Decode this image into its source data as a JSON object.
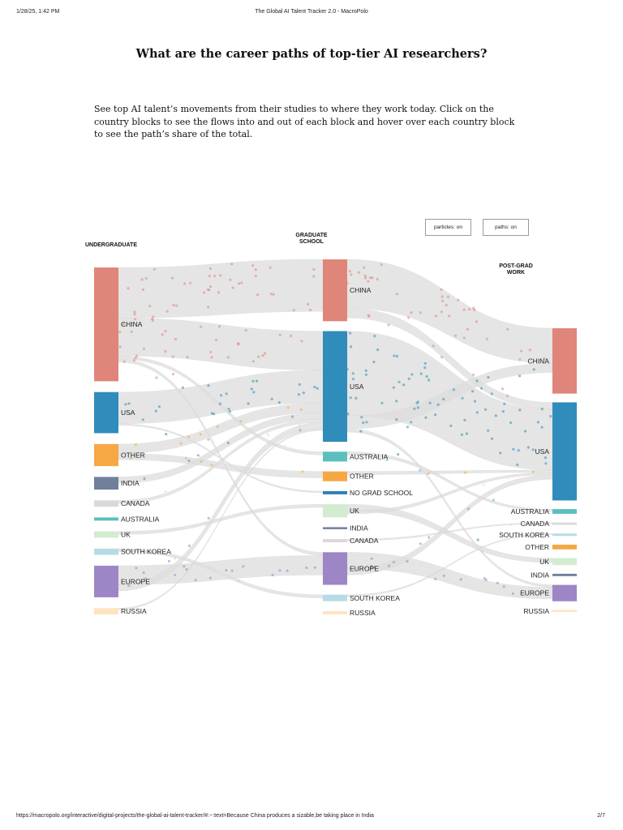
{
  "browser": {
    "timestamp": "1/28/25, 1:42 PM",
    "page_title": "The Global AI Talent Tracker 2.0 - MacroPolo",
    "url": "https://macropolo.org/interactive/digital-projects/the-global-ai-talent-tracker/#:~:text=Because China produces a sizable,be taking place in India",
    "page_number": "2/7"
  },
  "article": {
    "title": "What are the career paths of top-tier AI researchers?",
    "intro": "See top AI talent’s movements from their studies to where they work today. Click on the country blocks to see the flows into and out of each block and hover over each country block to see the path’s share of the total."
  },
  "controls": {
    "particles_label": "particles: on",
    "paths_label": "paths: on"
  },
  "colors": {
    "China": "#e0857a",
    "USA": "#2f8cbb",
    "Other": "#f5a844",
    "India": "#6f7f9c",
    "Canada": "#d9d9d9",
    "Australia": "#5bbfbd",
    "UK": "#d3ecd0",
    "South Korea": "#b7dbe6",
    "Europe": "#9c86c6",
    "Russia": "#fde4c0",
    "No Grad School": "#2f7fb7",
    "flow": "#dcdcdc"
  },
  "diagram": {
    "columns": [
      {
        "key": "undergrad",
        "heading": [
          "UNDERGRADUATE"
        ],
        "nodes": [
          {
            "id": "Ugrad-China",
            "country": "China",
            "label": "CHINA",
            "share": 0.36
          },
          {
            "id": "Ugrad-USA",
            "country": "USA",
            "label": "USA",
            "share": 0.13
          },
          {
            "id": "Ugrad-Other",
            "country": "Other",
            "label": "OTHER",
            "share": 0.07
          },
          {
            "id": "Ugrad-India",
            "country": "India",
            "label": "INDIA",
            "share": 0.04
          },
          {
            "id": "Ugrad-Canada",
            "country": "Canada",
            "label": "CANADA",
            "share": 0.02
          },
          {
            "id": "Ugrad-Australia",
            "country": "Australia",
            "label": "AUSTRALIA",
            "share": 0.01
          },
          {
            "id": "Ugrad-UK",
            "country": "UK",
            "label": "UK",
            "share": 0.02
          },
          {
            "id": "Ugrad-SouthKorea",
            "country": "South Korea",
            "label": "SOUTH KOREA",
            "share": 0.02
          },
          {
            "id": "Ugrad-Europe",
            "country": "Europe",
            "label": "EUROPE",
            "share": 0.1
          },
          {
            "id": "Ugrad-Russia",
            "country": "Russia",
            "label": "RUSSIA",
            "share": 0.02
          }
        ]
      },
      {
        "key": "grad",
        "heading": [
          "GRADUATE",
          "SCHOOL"
        ],
        "nodes": [
          {
            "id": "Grad-China",
            "country": "China",
            "label": "CHINA",
            "share": 0.19
          },
          {
            "id": "Grad-USA",
            "country": "USA",
            "label": "USA",
            "share": 0.34
          },
          {
            "id": "Grad-Australia",
            "country": "Australia",
            "label": "AUSTRALIA",
            "share": 0.03
          },
          {
            "id": "Grad-Other",
            "country": "Other",
            "label": "OTHER",
            "share": 0.03
          },
          {
            "id": "Grad-NoGrad",
            "country": "No Grad School",
            "label": "NO GRAD SCHOOL",
            "share": 0.01
          },
          {
            "id": "Grad-UK",
            "country": "UK",
            "label": "UK",
            "share": 0.04
          },
          {
            "id": "Grad-India",
            "country": "India",
            "label": "INDIA",
            "share": 0.005
          },
          {
            "id": "Grad-Canada",
            "country": "Canada",
            "label": "CANADA",
            "share": 0.01
          },
          {
            "id": "Grad-Europe",
            "country": "Europe",
            "label": "EUROPE",
            "share": 0.1
          },
          {
            "id": "Grad-SouthKorea",
            "country": "South Korea",
            "label": "SOUTH KOREA",
            "share": 0.02
          },
          {
            "id": "Grad-Russia",
            "country": "Russia",
            "label": "RUSSIA",
            "share": 0.01
          }
        ]
      },
      {
        "key": "work",
        "heading": [
          "POST-GRAD",
          "WORK"
        ],
        "nodes": [
          {
            "id": "Work-China",
            "country": "China",
            "label": "CHINA",
            "share": 0.28
          },
          {
            "id": "Work-USA",
            "country": "USA",
            "label": "USA",
            "share": 0.42
          },
          {
            "id": "Work-Australia",
            "country": "Australia",
            "label": "AUSTRALIA",
            "share": 0.02
          },
          {
            "id": "Work-Canada",
            "country": "Canada",
            "label": "CANADA",
            "share": 0.01
          },
          {
            "id": "Work-SouthKorea",
            "country": "South Korea",
            "label": "SOUTH KOREA",
            "share": 0.01
          },
          {
            "id": "Work-Other",
            "country": "Other",
            "label": "OTHER",
            "share": 0.02
          },
          {
            "id": "Work-UK",
            "country": "UK",
            "label": "UK",
            "share": 0.03
          },
          {
            "id": "Work-India",
            "country": "India",
            "label": "INDIA",
            "share": 0.01
          },
          {
            "id": "Work-Europe",
            "country": "Europe",
            "label": "EUROPE",
            "share": 0.07
          },
          {
            "id": "Work-Russia",
            "country": "Russia",
            "label": "RUSSIA",
            "share": 0.005
          }
        ]
      }
    ],
    "flows": [
      {
        "from": "Ugrad-China",
        "to": "Grad-China",
        "share": 0.16,
        "country": "China"
      },
      {
        "from": "Ugrad-China",
        "to": "Grad-USA",
        "share": 0.12,
        "country": "China"
      },
      {
        "from": "Ugrad-China",
        "to": "Grad-Australia",
        "share": 0.01,
        "country": "China"
      },
      {
        "from": "Ugrad-China",
        "to": "Grad-Europe",
        "share": 0.01,
        "country": "China"
      },
      {
        "from": "Ugrad-USA",
        "to": "Grad-USA",
        "share": 0.1,
        "country": "USA"
      },
      {
        "from": "Ugrad-USA",
        "to": "Grad-NoGrad",
        "share": 0.005,
        "country": "USA"
      },
      {
        "from": "Ugrad-Other",
        "to": "Grad-USA",
        "share": 0.03,
        "country": "Other"
      },
      {
        "from": "Ugrad-Other",
        "to": "Grad-Other",
        "share": 0.02,
        "country": "Other"
      },
      {
        "from": "Ugrad-India",
        "to": "Grad-USA",
        "share": 0.02,
        "country": "India"
      },
      {
        "from": "Ugrad-Canada",
        "to": "Grad-USA",
        "share": 0.01,
        "country": "Canada"
      },
      {
        "from": "Ugrad-UK",
        "to": "Grad-UK",
        "share": 0.01,
        "country": "UK"
      },
      {
        "from": "Ugrad-SouthKorea",
        "to": "Grad-SouthKorea",
        "share": 0.01,
        "country": "South Korea"
      },
      {
        "from": "Ugrad-Europe",
        "to": "Grad-Europe",
        "share": 0.06,
        "country": "Europe"
      },
      {
        "from": "Ugrad-Europe",
        "to": "Grad-USA",
        "share": 0.02,
        "country": "Europe"
      },
      {
        "from": "Ugrad-Russia",
        "to": "Grad-USA",
        "share": 0.005,
        "country": "Russia"
      },
      {
        "from": "Grad-China",
        "to": "Work-China",
        "share": 0.15,
        "country": "China"
      },
      {
        "from": "Grad-China",
        "to": "Work-USA",
        "share": 0.03,
        "country": "China"
      },
      {
        "from": "Grad-USA",
        "to": "Work-USA",
        "share": 0.26,
        "country": "USA"
      },
      {
        "from": "Grad-USA",
        "to": "Work-China",
        "share": 0.04,
        "country": "USA"
      },
      {
        "from": "Grad-USA",
        "to": "Work-Europe",
        "share": 0.01,
        "country": "USA"
      },
      {
        "from": "Grad-Australia",
        "to": "Work-Australia",
        "share": 0.01,
        "country": "Australia"
      },
      {
        "from": "Grad-Other",
        "to": "Work-USA",
        "share": 0.01,
        "country": "Other"
      },
      {
        "from": "Grad-UK",
        "to": "Work-UK",
        "share": 0.02,
        "country": "UK"
      },
      {
        "from": "Grad-UK",
        "to": "Work-USA",
        "share": 0.01,
        "country": "UK"
      },
      {
        "from": "Grad-Canada",
        "to": "Work-Canada",
        "share": 0.005,
        "country": "Canada"
      },
      {
        "from": "Grad-Europe",
        "to": "Work-Europe",
        "share": 0.05,
        "country": "Europe"
      },
      {
        "from": "Grad-Europe",
        "to": "Work-USA",
        "share": 0.02,
        "country": "Europe"
      },
      {
        "from": "Grad-SouthKorea",
        "to": "Work-SouthKorea",
        "share": 0.005,
        "country": "South Korea"
      }
    ]
  }
}
